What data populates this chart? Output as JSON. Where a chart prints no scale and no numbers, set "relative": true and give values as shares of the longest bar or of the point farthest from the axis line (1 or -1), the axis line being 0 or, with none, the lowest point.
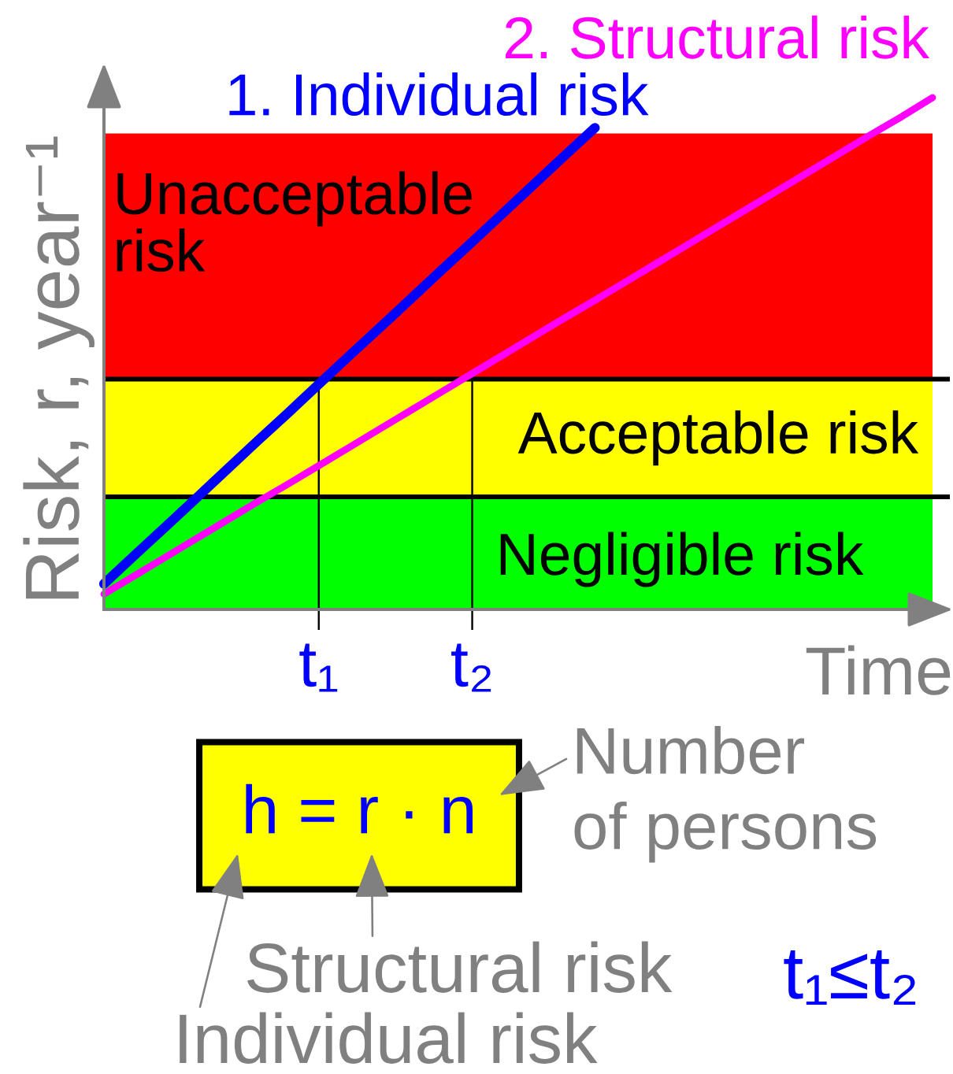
{
  "chart_data": {
    "type": "line",
    "relative": true,
    "xlabel": "Time",
    "ylabel": "Risk, r, year⁻¹",
    "categories": [
      null,
      null,
      null,
      null,
      null,
      null,
      null,
      "t₁",
      null,
      null,
      null,
      null,
      "t₂",
      null,
      null,
      null,
      null,
      null,
      null,
      null,
      null,
      null,
      null,
      null,
      null,
      null,
      null,
      null
    ],
    "series": [
      {
        "name": "1. Individual risk",
        "color": "#0000ff",
        "values": [
          0.05,
          0.106,
          0.161,
          0.217,
          0.273,
          0.329,
          0.384,
          0.44,
          0.496,
          0.551,
          0.607,
          0.663,
          0.718,
          0.774,
          0.83,
          0.886,
          0.941,
          null,
          null,
          null,
          null,
          null,
          null,
          null,
          null,
          null,
          null,
          null
        ]
      },
      {
        "name": "2. Structural risk",
        "color": "#ff00ff",
        "values": [
          0.03,
          0.066,
          0.102,
          0.138,
          0.174,
          0.21,
          0.245,
          0.281,
          0.317,
          0.353,
          0.389,
          0.425,
          0.461,
          0.497,
          0.533,
          0.569,
          0.604,
          0.64,
          0.676,
          0.712,
          0.748,
          0.784,
          0.82,
          0.856,
          0.892,
          0.928,
          0.963,
          1
        ]
      }
    ],
    "bands": [
      {
        "axis": "y",
        "from": 0.45,
        "to": 0.93,
        "label": "Unacceptable\nrisk",
        "color": "#ff0000"
      },
      {
        "axis": "y",
        "from": 0.22,
        "to": 0.45,
        "label": "Acceptable risk",
        "color": "#ffff00"
      },
      {
        "axis": "y",
        "from": 0,
        "to": 0.22,
        "label": "Negligible risk",
        "color": "#00ff00"
      }
    ],
    "ref_lines": [
      {
        "axis": "y",
        "value": 0.45,
        "color": "#000000"
      },
      {
        "axis": "y",
        "value": 0.22,
        "color": "#000000"
      },
      {
        "axis": "x",
        "value": "t₁",
        "color": "#000000"
      },
      {
        "axis": "x",
        "value": "t₂",
        "color": "#000000"
      }
    ],
    "annotations": [
      "h = r · n",
      "Number\nof persons",
      "Structural risk",
      "Individual risk",
      "t₁≤t₂"
    ]
  }
}
